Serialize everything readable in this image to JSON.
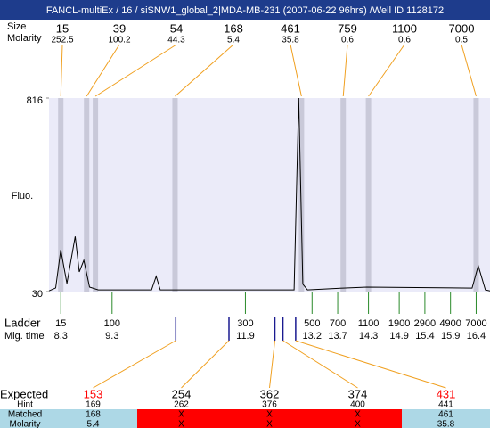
{
  "header": {
    "title": "FANCL-multiEx / 16 / siSNW1_global_2|MDA-MB-231 (2007-06-22 96hrs) /Well ID 1128172",
    "size_label": "Size",
    "molarity_label": "Molarity"
  },
  "peaks": {
    "sizes": [
      15,
      39,
      54,
      168,
      461,
      759,
      1100,
      7000
    ],
    "molarity": [
      252.5,
      100.2,
      44.3,
      5.4,
      35.8,
      0.6,
      0.6,
      0.5
    ]
  },
  "chart_data": {
    "type": "line",
    "ylabel": "Fluo.",
    "color": "#000000",
    "x": [
      8.07,
      8.2,
      8.3,
      8.42,
      8.58,
      8.66,
      8.75,
      8.86,
      9.03,
      10.07,
      10.16,
      10.24,
      12.85,
      12.94,
      13.02,
      13.11,
      13.8,
      14.27,
      16.32,
      16.44,
      16.58,
      16.67
    ],
    "values": [
      33,
      45,
      200,
      63,
      254,
      110,
      157,
      48,
      37,
      37,
      92,
      37,
      37,
      816,
      60,
      37,
      44,
      48,
      44,
      135,
      37,
      33
    ],
    "xlim": [
      8.07,
      16.67
    ],
    "ylim": [
      30,
      816
    ],
    "yticks": [
      30,
      816
    ]
  },
  "ladder": {
    "label": "Ladder",
    "time_label": "Mig. time",
    "sizes": [
      15,
      100,
      300,
      500,
      700,
      1100,
      1900,
      2900,
      4900,
      7000
    ],
    "times": [
      8.3,
      9.3,
      11.9,
      13.2,
      13.7,
      14.3,
      14.9,
      15.4,
      15.9,
      16.4
    ]
  },
  "expected": {
    "label": "Expected",
    "hint_label": "Hint",
    "matched_label": "Matched",
    "molarity_label": "Molarity",
    "values": [
      153,
      254,
      362,
      374,
      431
    ],
    "colors": [
      "#ff0000",
      "#000000",
      "#000000",
      "#000000",
      "#ff0000"
    ],
    "hint": [
      169,
      262,
      376,
      400,
      441
    ],
    "matched": [
      168,
      "X",
      "X",
      "X",
      461
    ],
    "molarity": [
      5.4,
      "X",
      "X",
      "X",
      35.8
    ]
  }
}
